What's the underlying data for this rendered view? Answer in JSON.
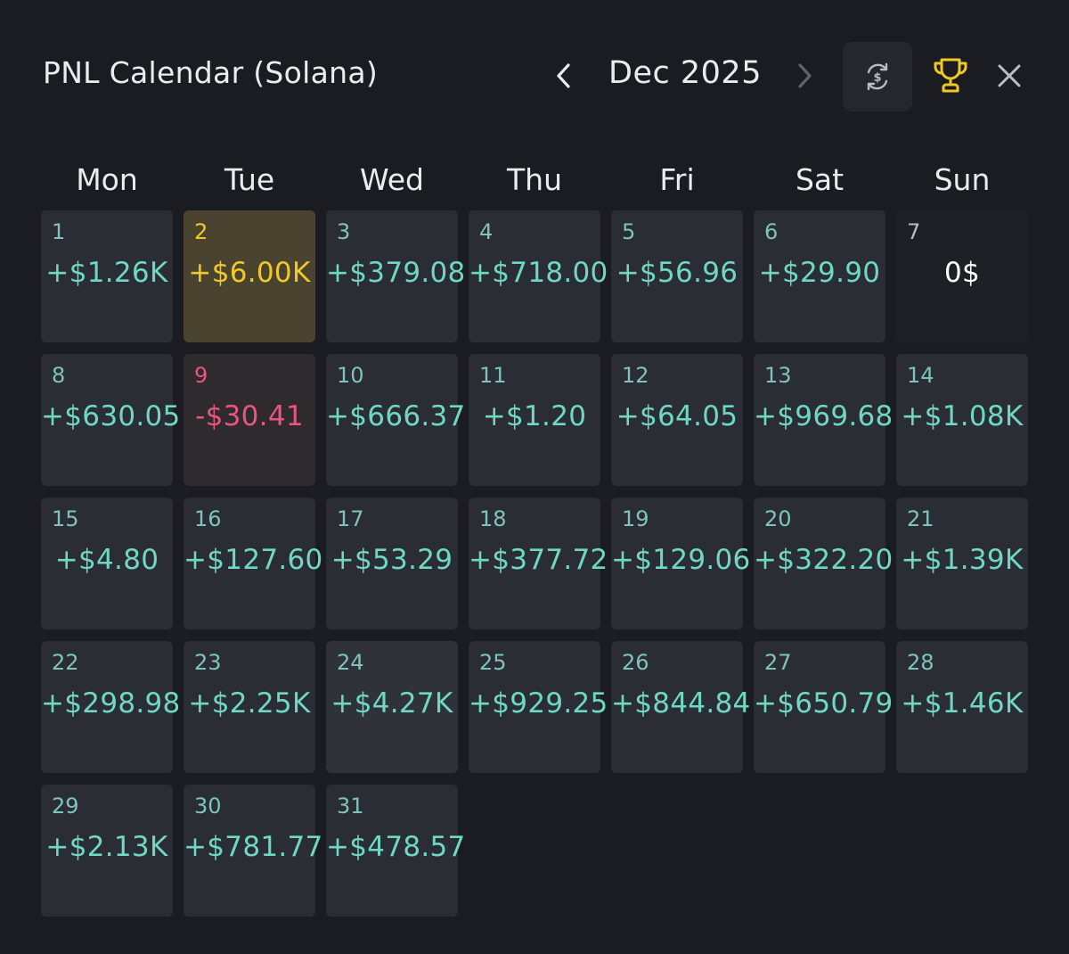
{
  "header": {
    "title": "PNL Calendar (Solana)",
    "month": "Dec 2025"
  },
  "icons": {
    "prev": "chevron-left-icon",
    "next": "chevron-right-icon",
    "refresh": "currency-refresh-icon",
    "trophy": "trophy-icon",
    "close": "close-icon"
  },
  "colors": {
    "positive": "#6fd9c0",
    "negative": "#e9557f",
    "best_day": "#f0c929",
    "neutral": "#ffffff",
    "trophy": "#f0c929"
  },
  "weekdays": [
    "Mon",
    "Tue",
    "Wed",
    "Thu",
    "Fri",
    "Sat",
    "Sun"
  ],
  "days": [
    {
      "day": "1",
      "pnl": "+$1.26K",
      "state": "positive"
    },
    {
      "day": "2",
      "pnl": "+$6.00K",
      "state": "best"
    },
    {
      "day": "3",
      "pnl": "+$379.08",
      "state": "positive"
    },
    {
      "day": "4",
      "pnl": "+$718.00",
      "state": "positive"
    },
    {
      "day": "5",
      "pnl": "+$56.96",
      "state": "positive"
    },
    {
      "day": "6",
      "pnl": "+$29.90",
      "state": "positive"
    },
    {
      "day": "7",
      "pnl": "0$",
      "state": "neutral"
    },
    {
      "day": "8",
      "pnl": "+$630.05",
      "state": "positive"
    },
    {
      "day": "9",
      "pnl": "-$30.41",
      "state": "negative"
    },
    {
      "day": "10",
      "pnl": "+$666.37",
      "state": "positive"
    },
    {
      "day": "11",
      "pnl": "+$1.20",
      "state": "positive"
    },
    {
      "day": "12",
      "pnl": "+$64.05",
      "state": "positive"
    },
    {
      "day": "13",
      "pnl": "+$969.68",
      "state": "positive"
    },
    {
      "day": "14",
      "pnl": "+$1.08K",
      "state": "positive"
    },
    {
      "day": "15",
      "pnl": "+$4.80",
      "state": "positive"
    },
    {
      "day": "16",
      "pnl": "+$127.60",
      "state": "positive"
    },
    {
      "day": "17",
      "pnl": "+$53.29",
      "state": "positive"
    },
    {
      "day": "18",
      "pnl": "+$377.72",
      "state": "positive"
    },
    {
      "day": "19",
      "pnl": "+$129.06",
      "state": "positive"
    },
    {
      "day": "20",
      "pnl": "+$322.20",
      "state": "positive"
    },
    {
      "day": "21",
      "pnl": "+$1.39K",
      "state": "positive"
    },
    {
      "day": "22",
      "pnl": "+$298.98",
      "state": "positive"
    },
    {
      "day": "23",
      "pnl": "+$2.25K",
      "state": "positive"
    },
    {
      "day": "24",
      "pnl": "+$4.27K",
      "state": "positive-strong"
    },
    {
      "day": "25",
      "pnl": "+$929.25",
      "state": "positive"
    },
    {
      "day": "26",
      "pnl": "+$844.84",
      "state": "positive"
    },
    {
      "day": "27",
      "pnl": "+$650.79",
      "state": "positive"
    },
    {
      "day": "28",
      "pnl": "+$1.46K",
      "state": "positive"
    },
    {
      "day": "29",
      "pnl": "+$2.13K",
      "state": "positive"
    },
    {
      "day": "30",
      "pnl": "+$781.77",
      "state": "positive"
    },
    {
      "day": "31",
      "pnl": "+$478.57",
      "state": "positive"
    }
  ]
}
